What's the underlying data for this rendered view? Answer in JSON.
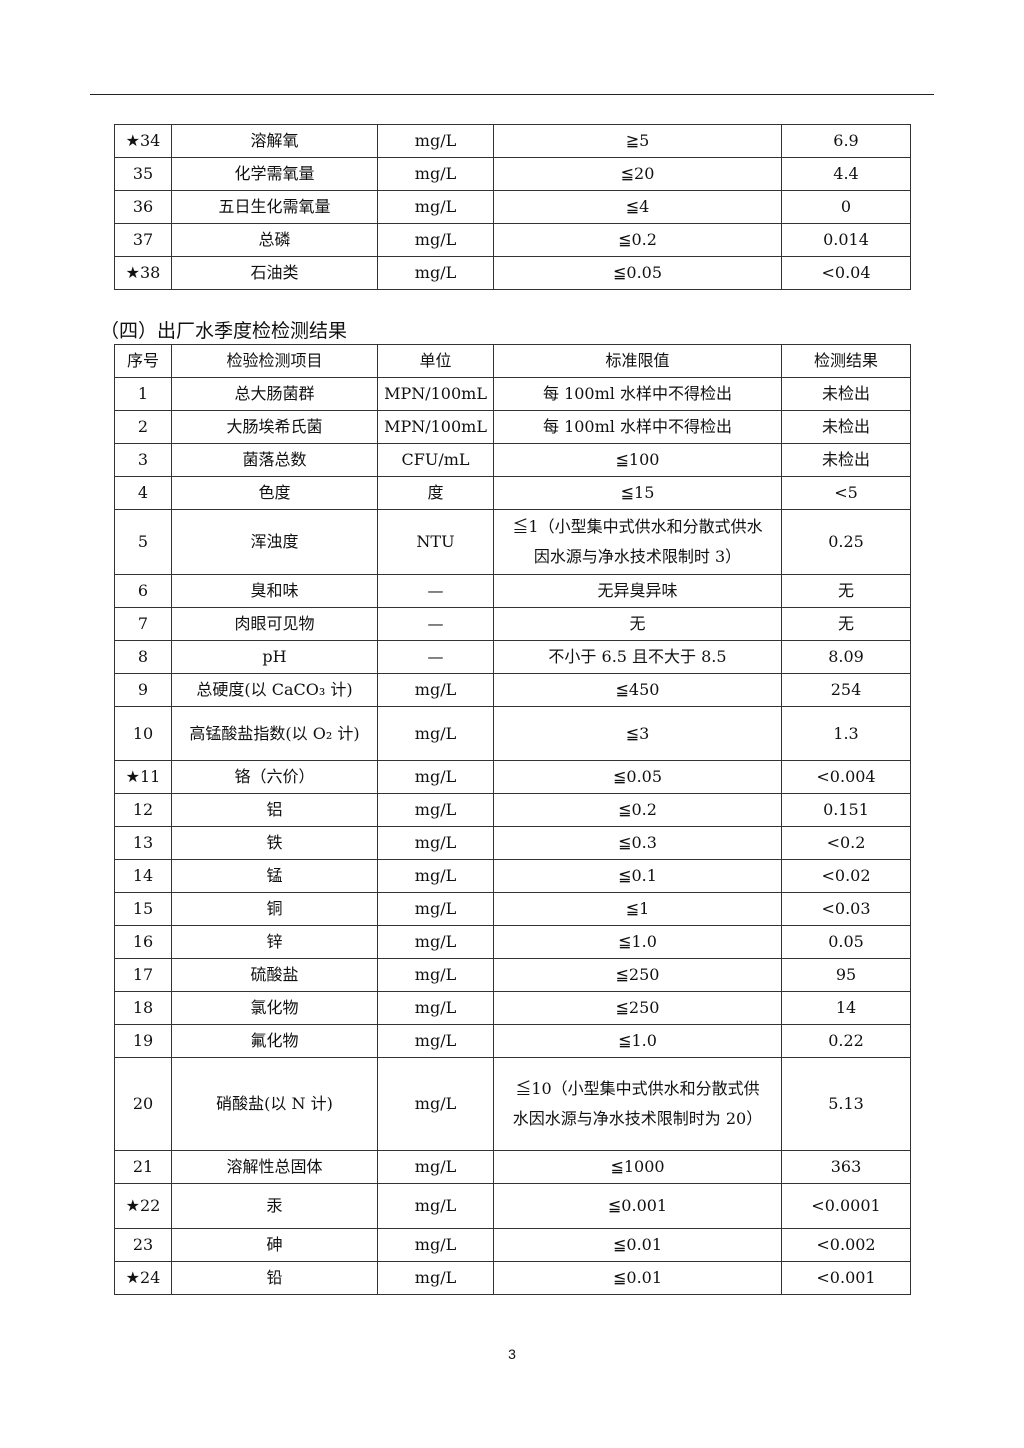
{
  "table_continued": {
    "rows": [
      [
        "★34",
        "溶解氧",
        "mg/L",
        "≧5",
        "6.9"
      ],
      [
        "35",
        "化学需氧量",
        "mg/L",
        "≦20",
        "4.4"
      ],
      [
        "36",
        "五日生化需氧量",
        "mg/L",
        "≦4",
        "0"
      ],
      [
        "37",
        "总磷",
        "mg/L",
        "≦0.2",
        "0.014"
      ],
      [
        "★38",
        "石油类",
        "mg/L",
        "≦0.05",
        "<0.04"
      ]
    ]
  },
  "section_title": "（四）出厂水季度检检测结果",
  "table_quarterly": {
    "headers": [
      "序号",
      "检验检测项目",
      "单位",
      "标准限值",
      "检测结果"
    ],
    "rows": [
      [
        "1",
        "总大肠菌群",
        "MPN/100mL",
        "每 100ml 水样中不得检出",
        "未检出"
      ],
      [
        "2",
        "大肠埃希氏菌",
        "MPN/100mL",
        "每 100ml 水样中不得检出",
        "未检出"
      ],
      [
        "3",
        "菌落总数",
        "CFU/mL",
        "≦100",
        "未检出"
      ],
      [
        "4",
        "色度",
        "度",
        "≦15",
        "<5"
      ],
      [
        "5",
        "浑浊度",
        "NTU",
        "≦1（小型集中式供水和分散式供水因水源与净水技术限制时 3）",
        "0.25"
      ],
      [
        "6",
        "臭和味",
        "—",
        "无异臭异味",
        "无"
      ],
      [
        "7",
        "肉眼可见物",
        "—",
        "无",
        "无"
      ],
      [
        "8",
        "pH",
        "—",
        "不小于 6.5 且不大于 8.5",
        "8.09"
      ],
      [
        "9",
        "总硬度(以 CaCO₃ 计)",
        "mg/L",
        "≦450",
        "254"
      ],
      [
        "10",
        "高锰酸盐指数(以 O₂ 计)",
        "mg/L",
        "≦3",
        "1.3"
      ],
      [
        "★11",
        "铬（六价）",
        "mg/L",
        "≦0.05",
        "<0.004"
      ],
      [
        "12",
        "铝",
        "mg/L",
        "≦0.2",
        "0.151"
      ],
      [
        "13",
        "铁",
        "mg/L",
        "≦0.3",
        "<0.2"
      ],
      [
        "14",
        "锰",
        "mg/L",
        "≦0.1",
        "<0.02"
      ],
      [
        "15",
        "铜",
        "mg/L",
        "≦1",
        "<0.03"
      ],
      [
        "16",
        "锌",
        "mg/L",
        "≦1.0",
        "0.05"
      ],
      [
        "17",
        "硫酸盐",
        "mg/L",
        "≦250",
        "95"
      ],
      [
        "18",
        "氯化物",
        "mg/L",
        "≦250",
        "14"
      ],
      [
        "19",
        "氟化物",
        "mg/L",
        "≦1.0",
        "0.22"
      ],
      [
        "20",
        "硝酸盐(以 N 计)",
        "mg/L",
        "≦10（小型集中式供水和分散式供水因水源与净水技术限制时为 20）",
        "5.13"
      ],
      [
        "21",
        "溶解性总固体",
        "mg/L",
        "≦1000",
        "363"
      ],
      [
        "★22",
        "汞",
        "mg/L",
        "≦0.001",
        "<0.0001"
      ],
      [
        "23",
        "砷",
        "mg/L",
        "≦0.01",
        "<0.002"
      ],
      [
        "★24",
        "铅",
        "mg/L",
        "≦0.01",
        "<0.001"
      ]
    ]
  },
  "page_number": "3"
}
